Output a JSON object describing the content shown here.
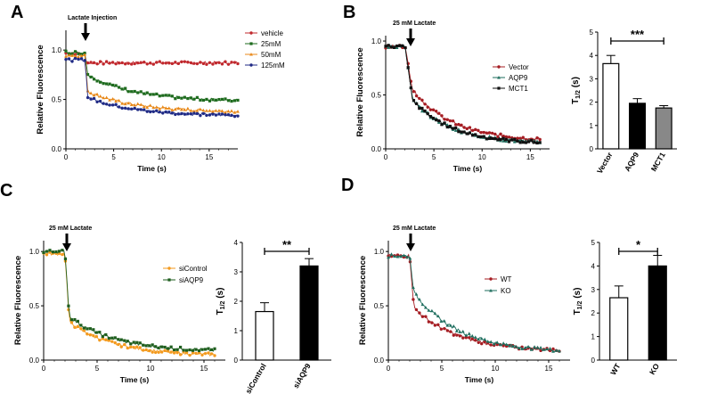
{
  "chart_data": [
    {
      "type": "line",
      "panel": "A",
      "annotation": "Lactate Injection",
      "xlabel": "Time  (s)",
      "ylabel": "Relative Fluorescence",
      "xlim": [
        0,
        18
      ],
      "ylim": [
        0,
        1.2
      ],
      "xticks": [
        "0",
        "5",
        "10",
        "15"
      ],
      "yticks": [
        "0.0",
        "0.5",
        "1.0"
      ],
      "legend": "top-right",
      "series": [
        {
          "name": "vehicle",
          "color": "#c0282d",
          "marker": "circle",
          "key": [
            [
              0,
              0.97
            ],
            [
              2,
              0.96
            ],
            [
              2.2,
              0.87
            ],
            [
              18,
              0.87
            ]
          ],
          "final": 0.87
        },
        {
          "name": "25mM",
          "color": "#1e6b1e",
          "marker": "square",
          "key": [
            [
              0,
              0.98
            ],
            [
              2,
              0.97
            ],
            [
              2.3,
              0.75
            ],
            [
              18,
              0.49
            ]
          ],
          "final": 0.49
        },
        {
          "name": "50mM",
          "color": "#e8891a",
          "marker": "triangle",
          "key": [
            [
              0,
              0.95
            ],
            [
              2,
              0.94
            ],
            [
              2.3,
              0.58
            ],
            [
              18,
              0.38
            ]
          ],
          "final": 0.38
        },
        {
          "name": "125mM",
          "color": "#1f2a85",
          "marker": "circle",
          "key": [
            [
              0,
              0.9
            ],
            [
              2,
              0.9
            ],
            [
              2.3,
              0.52
            ],
            [
              18,
              0.34
            ]
          ],
          "final": 0.34
        }
      ]
    },
    {
      "type": "line",
      "panel": "B",
      "annotation": "25 mM Lactate",
      "xlabel": "Time (s)",
      "ylabel": "Relative Fluorescence",
      "xlim": [
        0,
        17
      ],
      "ylim": [
        0,
        1.05
      ],
      "xticks": [
        "0",
        "5",
        "10",
        "15"
      ],
      "yticks": [
        "0.0",
        "0.5",
        "1.0"
      ],
      "legend": "middle-right",
      "series": [
        {
          "name": "Vector",
          "color": "#a51c22",
          "marker": "circle",
          "key": [
            [
              0,
              0.95
            ],
            [
              2,
              0.95
            ],
            [
              2.8,
              0.55
            ],
            [
              16,
              0.09
            ]
          ],
          "final": 0.09
        },
        {
          "name": "AQP9",
          "color": "#1e6e5e",
          "marker": "triangle",
          "key": [
            [
              0,
              0.95
            ],
            [
              2,
              0.95
            ],
            [
              2.8,
              0.45
            ],
            [
              16,
              0.06
            ]
          ],
          "final": 0.06
        },
        {
          "name": "MCT1",
          "color": "#111111",
          "marker": "square",
          "key": [
            [
              0,
              0.95
            ],
            [
              2,
              0.95
            ],
            [
              2.8,
              0.45
            ],
            [
              16,
              0.06
            ]
          ],
          "final": 0.06
        }
      ]
    },
    {
      "type": "bar",
      "panel": "B",
      "ylabel": "T1/2 (s)",
      "ylim": [
        0,
        5
      ],
      "yticks": [
        "0",
        "1",
        "2",
        "3",
        "4",
        "5"
      ],
      "categories": [
        "Vector",
        "AQP9",
        "MCT1"
      ],
      "values": [
        3.65,
        1.95,
        1.75
      ],
      "errors": [
        0.35,
        0.2,
        0.1
      ],
      "colors": [
        "#ffffff",
        "#000000",
        "#888888"
      ],
      "significance": "***"
    },
    {
      "type": "line",
      "panel": "C",
      "annotation": "25 mM Lactate",
      "xlabel": "Time (s)",
      "ylabel": "Relative Fluorescence",
      "xlim": [
        0,
        17
      ],
      "ylim": [
        0,
        1.1
      ],
      "xticks": [
        "0",
        "5",
        "10",
        "15"
      ],
      "yticks": [
        "0.0",
        "0.5",
        "1.0"
      ],
      "legend": "upper-middle",
      "series": [
        {
          "name": "siControl",
          "color": "#f39a1e",
          "marker": "circle",
          "key": [
            [
              0,
              0.98
            ],
            [
              2,
              0.98
            ],
            [
              2.4,
              0.35
            ],
            [
              16,
              0.05
            ]
          ],
          "final": 0.05
        },
        {
          "name": "siAQP9",
          "color": "#1e5e1e",
          "marker": "square",
          "key": [
            [
              0,
              1.0
            ],
            [
              2,
              1.0
            ],
            [
              2.4,
              0.4
            ],
            [
              16,
              0.09
            ]
          ],
          "final": 0.09
        }
      ]
    },
    {
      "type": "bar",
      "panel": "C",
      "ylabel": "T1/2 (s)",
      "ylim": [
        0,
        4
      ],
      "yticks": [
        "0",
        "1",
        "2",
        "3",
        "4"
      ],
      "categories": [
        "siControl",
        "siAQP9"
      ],
      "values": [
        1.65,
        3.2
      ],
      "errors": [
        0.3,
        0.25
      ],
      "colors": [
        "#ffffff",
        "#000000"
      ],
      "significance": "**"
    },
    {
      "type": "line",
      "panel": "D",
      "annotation": "25 mM Lactate",
      "xlabel": "Time (s)",
      "ylabel": "Relative Fluorescence",
      "xlim": [
        0,
        17
      ],
      "ylim": [
        0,
        1.1
      ],
      "xticks": [
        "0",
        "5",
        "10",
        "15"
      ],
      "yticks": [
        "0.0",
        "0.5",
        "1.0"
      ],
      "legend": "middle-right",
      "series": [
        {
          "name": "WT",
          "color": "#a51c22",
          "marker": "circle",
          "key": [
            [
              0,
              0.96
            ],
            [
              2,
              0.96
            ],
            [
              2.4,
              0.48
            ],
            [
              16,
              0.09
            ]
          ],
          "final": 0.09
        },
        {
          "name": "KO",
          "color": "#1e6e5e",
          "marker": "triangle",
          "key": [
            [
              0,
              0.96
            ],
            [
              2,
              0.96
            ],
            [
              2.4,
              0.62
            ],
            [
              16,
              0.09
            ]
          ],
          "final": 0.09
        }
      ]
    },
    {
      "type": "bar",
      "panel": "D",
      "ylabel": "T1/2 (s)",
      "ylim": [
        0,
        5
      ],
      "yticks": [
        "0",
        "1",
        "2",
        "3",
        "4",
        "5"
      ],
      "categories": [
        "WT",
        "KO"
      ],
      "values": [
        2.65,
        4.0
      ],
      "errors": [
        0.5,
        0.45
      ],
      "colors": [
        "#ffffff",
        "#000000"
      ],
      "significance": "*"
    }
  ]
}
